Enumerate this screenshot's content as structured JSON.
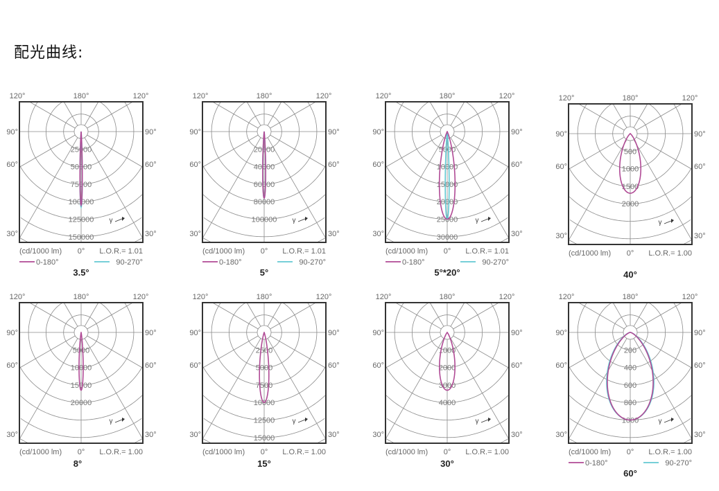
{
  "heading": "配光曲线:",
  "colors": {
    "c0_180": "#b04a95",
    "c90_270": "#62c8d2",
    "grid": "#8a8a8a",
    "frame": "#333333",
    "label": "#666666"
  },
  "angle_labels": {
    "top_left": "120°",
    "top_center": "180°",
    "top_right": "120°",
    "mid": "90°",
    "lower": "60°",
    "bottom": "30°",
    "origin": "0°"
  },
  "unit_label": "(cd/1000 lm)",
  "chart_data": [
    {
      "type": "polar",
      "title": "3.5°",
      "lor": "L.O.R.= 1.01",
      "ring_labels": [
        "25000",
        "50000",
        "75000",
        "100000",
        "125000",
        "150000"
      ],
      "ring_step": 25000,
      "legend": [
        "0-180°",
        "90-270°"
      ],
      "series": [
        {
          "name": "0-180°",
          "peak": 105000,
          "beam_angle": 3.5
        },
        {
          "name": "90-270°",
          "peak": 108000,
          "beam_angle": 3.5
        }
      ]
    },
    {
      "type": "polar",
      "title": "5°",
      "lor": "L.O.R.= 1.01",
      "ring_labels": [
        "20000",
        "40000",
        "60000",
        "80000",
        "100000"
      ],
      "ring_step": 20000,
      "legend": [
        "0-180°",
        "90-270°"
      ],
      "series": [
        {
          "name": "0-180°",
          "peak": 76000,
          "beam_angle": 5
        },
        {
          "name": "90-270°",
          "peak": 76000,
          "beam_angle": 5
        }
      ]
    },
    {
      "type": "polar",
      "title": "5°*20°",
      "lor": "L.O.R.= 1.01",
      "ring_labels": [
        "5000",
        "10000",
        "15000",
        "20000",
        "25000",
        "30000"
      ],
      "ring_step": 5000,
      "legend": [
        "0-180°",
        "90-270°"
      ],
      "series": [
        {
          "name": "0-180°",
          "peak": 25000,
          "beam_angle": 20
        },
        {
          "name": "90-270°",
          "peak": 25000,
          "beam_angle": 5
        }
      ]
    },
    {
      "type": "polar",
      "title": "40°",
      "lor": "L.O.R.= 1.00",
      "ring_labels": [
        "500",
        "1000",
        "1500",
        "2000"
      ],
      "ring_step": 500,
      "legend": [],
      "series": [
        {
          "peak": 1700,
          "beam_angle": 40
        }
      ]
    },
    {
      "type": "polar",
      "title": "8°",
      "lor": "L.O.R.= 1.00",
      "ring_labels": [
        "5000",
        "10000",
        "15000",
        "20000"
      ],
      "ring_step": 5000,
      "legend": [],
      "series": [
        {
          "peak": 16500,
          "beam_angle": 8
        }
      ]
    },
    {
      "type": "polar",
      "title": "15°",
      "lor": "L.O.R.= 1.00",
      "ring_labels": [
        "2500",
        "5000",
        "7500",
        "10000",
        "12500",
        "15000"
      ],
      "ring_step": 2500,
      "legend": [],
      "series": [
        {
          "peak": 10000,
          "beam_angle": 15
        }
      ]
    },
    {
      "type": "polar",
      "title": "30°",
      "lor": "L.O.R.= 1.00",
      "ring_labels": [
        "1000",
        "2000",
        "3000",
        "4000"
      ],
      "ring_step": 1000,
      "legend": [],
      "series": [
        {
          "peak": 3300,
          "beam_angle": 30
        }
      ]
    },
    {
      "type": "polar",
      "title": "60°",
      "lor": "L.O.R.= 1.00",
      "ring_labels": [
        "200",
        "400",
        "600",
        "800",
        "1000"
      ],
      "ring_step": 200,
      "legend": [
        "0-180°",
        "90-270°"
      ],
      "series": [
        {
          "name": "0-180°",
          "peak": 1000,
          "beam_angle": 60
        },
        {
          "name": "90-270°",
          "peak": 1000,
          "beam_angle": 62
        }
      ]
    }
  ]
}
